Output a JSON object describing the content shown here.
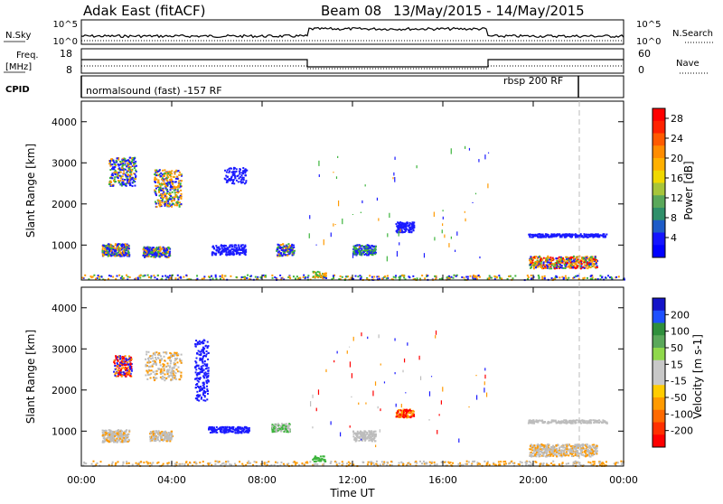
{
  "header": {
    "station": "Adak East (fitACF)",
    "beam": "Beam 08",
    "dates": "13/May/2015 - 14/May/2015"
  },
  "panels": {
    "nsky_label": "N.Sky",
    "nsky_hi": "10^5",
    "nsky_lo": "10^0",
    "nsearch_label": "N.Search",
    "nsearch_hi": "10^5",
    "nsearch_lo": "10^0",
    "freq_label": "Freq.",
    "freq_unit": "[MHz]",
    "freq_hi": "18",
    "freq_lo": "8",
    "nave_label": "Nave",
    "nave_hi": "60",
    "nave_lo": "0",
    "cpid_label": "CPID",
    "cpid_1": "normalsound (fast) -157 RF",
    "cpid_2": "rbsp 200 RF"
  },
  "colors": {
    "blue": "#1a1aff",
    "green": "#3cb43c",
    "orange": "#ff9a00",
    "red": "#ff0000",
    "grey": "#bdbdbd"
  },
  "chart_data": [
    {
      "type": "heatmap",
      "title": "Power",
      "xlabel": "Time UT",
      "ylabel": "Slant Range [km]",
      "x_ticks": [
        "00:00",
        "04:00",
        "08:00",
        "12:00",
        "16:00",
        "20:00",
        "00:00"
      ],
      "xlim": [
        "00:00",
        "24:00"
      ],
      "ylim": [
        150,
        4500
      ],
      "y_ticks": [
        1000,
        2000,
        3000,
        4000
      ],
      "colorbar": {
        "label": "Power [dB]",
        "ticks": [
          4,
          8,
          12,
          16,
          20,
          24,
          28
        ],
        "range": [
          0,
          30
        ]
      }
    },
    {
      "type": "heatmap",
      "title": "Velocity",
      "xlabel": "Time UT",
      "ylabel": "Slant Range [km]",
      "x_ticks": [
        "00:00",
        "04:00",
        "08:00",
        "12:00",
        "16:00",
        "20:00",
        "00:00"
      ],
      "xlim": [
        "00:00",
        "24:00"
      ],
      "ylim": [
        150,
        4500
      ],
      "y_ticks": [
        1000,
        2000,
        3000,
        4000
      ],
      "colorbar": {
        "label": "Velocity [m s-1]",
        "ticks": [
          200,
          100,
          50,
          15,
          -15,
          -50,
          -100,
          -200
        ],
        "range": [
          -250,
          250
        ]
      }
    }
  ]
}
